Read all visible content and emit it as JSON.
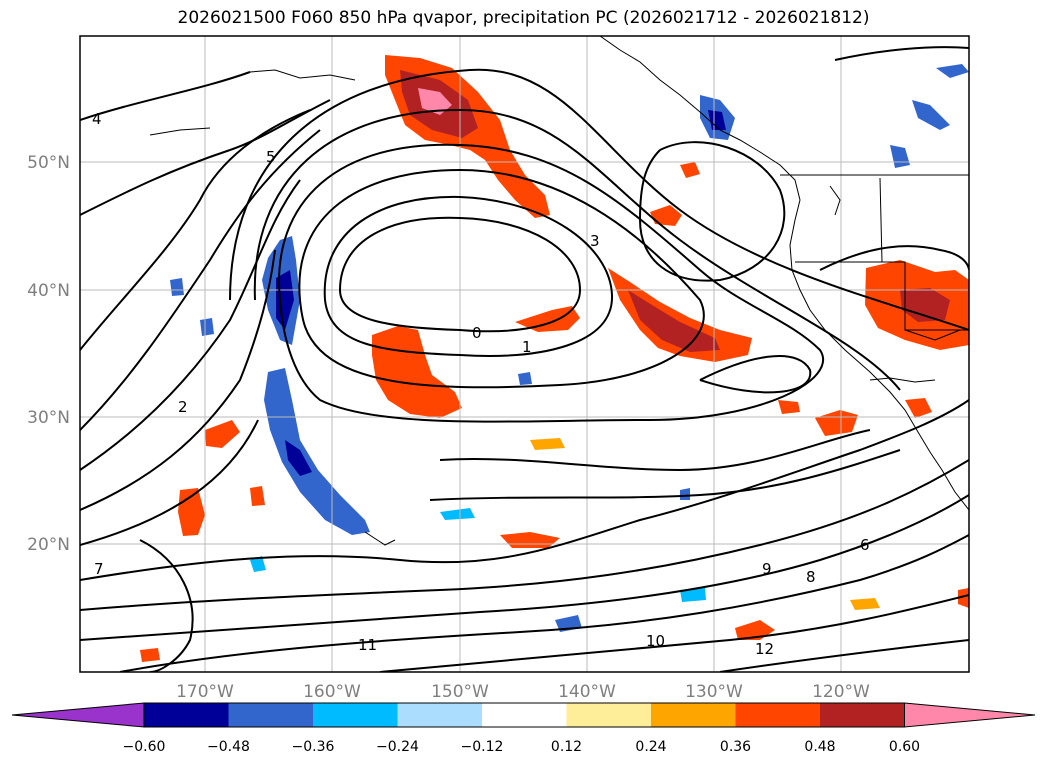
{
  "title": "2026021500 F060 850 hPa qvapor, precipitation PC (2026021712 - 2026021812)",
  "map": {
    "lat_ticks": [
      "50°N",
      "40°N",
      "30°N",
      "20°N"
    ],
    "lon_ticks": [
      "170°W",
      "160°W",
      "150°W",
      "140°W",
      "130°W",
      "120°W"
    ],
    "contour_labels": [
      "0",
      "1",
      "2",
      "3",
      "4",
      "5",
      "6",
      "7",
      "8",
      "9",
      "10",
      "11",
      "12"
    ]
  },
  "colorbar": {
    "extend": "both",
    "colors": [
      "#9933cc",
      "#000099",
      "#3366cc",
      "#00bbff",
      "#aaddff",
      "#ffffff",
      "#ffee99",
      "#ffa500",
      "#ff4500",
      "#b22222",
      "#ff88aa"
    ],
    "tick_labels": [
      "−0.60",
      "−0.48",
      "−0.36",
      "−0.24",
      "−0.12",
      "0.12",
      "0.24",
      "0.36",
      "0.48",
      "0.60"
    ]
  }
}
